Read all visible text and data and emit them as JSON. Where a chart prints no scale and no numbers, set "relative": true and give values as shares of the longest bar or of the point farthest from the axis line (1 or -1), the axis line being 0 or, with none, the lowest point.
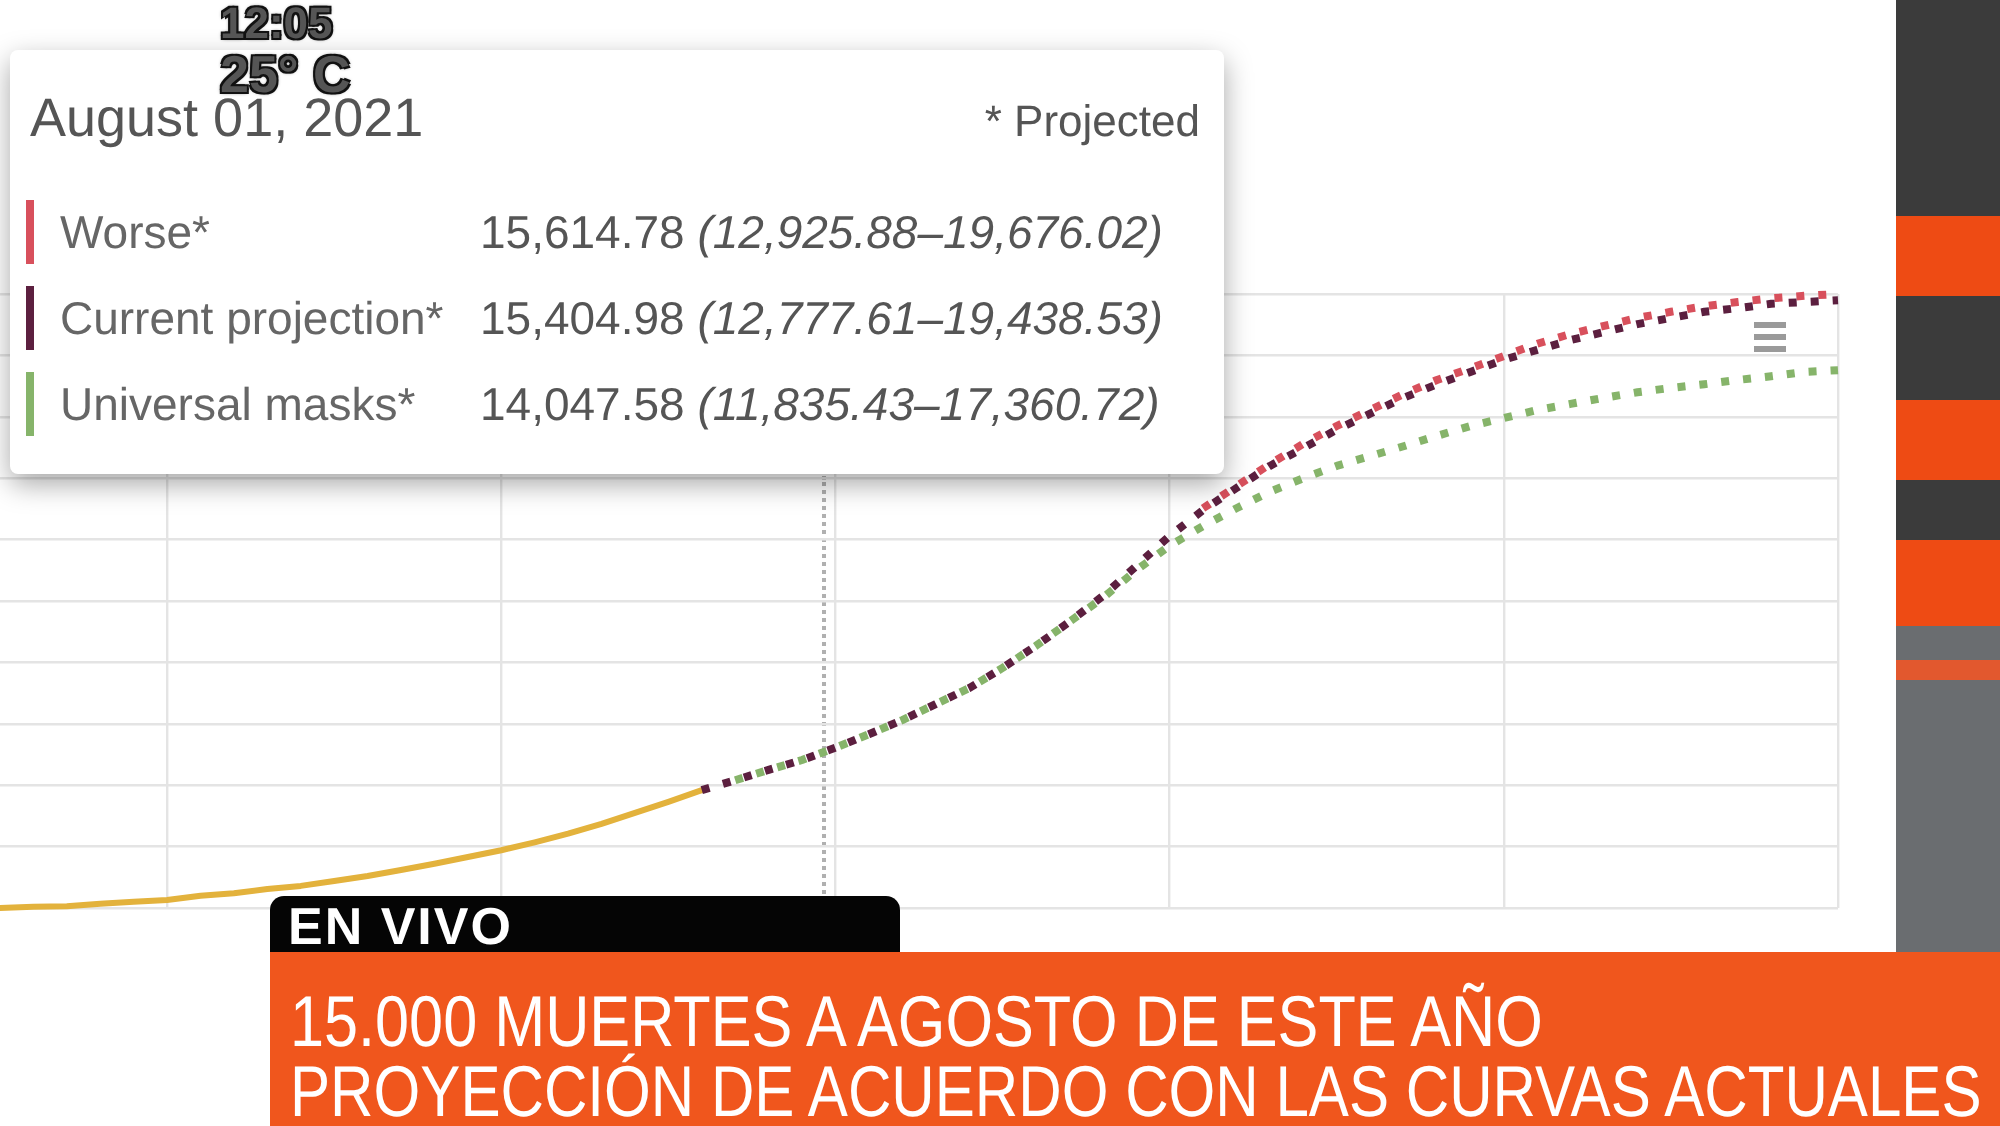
{
  "chart_data": {
    "type": "line",
    "title": "15.000 MUERTES A AGOSTO DE ESTE AÑO",
    "subtitle": "PROYECCIÓN DE ACUERDO CON LAS CURVAS ACTUALES",
    "legend_title": "August 01, 2021",
    "annotations": [
      "* Projected",
      "15,614.78 (12,925.88–19,676.02)",
      "15,404.98 (12,777.61–19,438.53)",
      "14,047.58 (11,835.43–17,360.72)",
      "EN VIVO",
      "12:05",
      "25° C"
    ],
    "categories": [
      null,
      null,
      null,
      null,
      null,
      null,
      null,
      null,
      null,
      null,
      null,
      null,
      null,
      null,
      null,
      null,
      null,
      null,
      null,
      null,
      null,
      null,
      null,
      null,
      null,
      null,
      null,
      null,
      null,
      null,
      null,
      null,
      null,
      null,
      null,
      null,
      null,
      null,
      null,
      null,
      null,
      null,
      null,
      null,
      null,
      null,
      null,
      null,
      null,
      null,
      null,
      null,
      null,
      null,
      null,
      null
    ],
    "relative": true,
    "series": [
      {
        "color": "#e3b23c",
        "line_style": "solid",
        "values": [
          0,
          0.002,
          0.003,
          0.007,
          0.01,
          0.013,
          0.02,
          0.024,
          0.031,
          0.036,
          0.044,
          0.052,
          0.062,
          0.072,
          0.083,
          0.094,
          0.107,
          0.121,
          0.137,
          0.155,
          0.173,
          0.192,
          null,
          null,
          null,
          null,
          null,
          null,
          null,
          null,
          null,
          null,
          null,
          null,
          null,
          null,
          null,
          null,
          null,
          null,
          null,
          null,
          null,
          null,
          null,
          null,
          null,
          null,
          null,
          null,
          null,
          null,
          null,
          null,
          null,
          null
        ]
      },
      {
        "name": "Worse*",
        "color": "#d8505c",
        "line_style": "dotted",
        "values": [
          null,
          null,
          null,
          null,
          null,
          null,
          null,
          null,
          null,
          null,
          null,
          null,
          null,
          null,
          null,
          null,
          null,
          null,
          null,
          null,
          null,
          null,
          null,
          null,
          null,
          null,
          null,
          null,
          null,
          null,
          null,
          null,
          null,
          null,
          null,
          null,
          0.651,
          0.687,
          0.723,
          0.756,
          0.785,
          0.811,
          0.837,
          0.86,
          0.879,
          0.899,
          0.919,
          0.935,
          0.948,
          0.961,
          0.971,
          0.98,
          0.987,
          0.993,
          0.997,
          1
        ]
      },
      {
        "name": "Current projection*",
        "color": "#5c1f3f",
        "line_style": "dotted",
        "values": [
          null,
          null,
          null,
          null,
          null,
          null,
          null,
          null,
          null,
          null,
          null,
          null,
          null,
          null,
          null,
          null,
          null,
          null,
          null,
          null,
          null,
          0.192,
          0.208,
          0.225,
          0.241,
          0.261,
          0.283,
          0.306,
          0.332,
          0.358,
          0.391,
          0.427,
          0.466,
          0.508,
          0.557,
          0.606,
          0.648,
          0.684,
          0.72,
          0.749,
          0.779,
          0.805,
          0.831,
          0.853,
          0.873,
          0.893,
          0.909,
          0.925,
          0.938,
          0.951,
          0.961,
          0.971,
          0.977,
          0.984,
          0.987,
          0.99
        ]
      },
      {
        "name": "Universal masks*",
        "color": "#86b46a",
        "line_style": "dotted",
        "values": [
          null,
          null,
          null,
          null,
          null,
          null,
          null,
          null,
          null,
          null,
          null,
          null,
          null,
          null,
          null,
          null,
          null,
          null,
          null,
          null,
          null,
          null,
          0.208,
          0.225,
          0.241,
          0.261,
          0.283,
          0.306,
          0.332,
          0.358,
          0.391,
          0.427,
          0.466,
          0.505,
          0.55,
          0.59,
          0.622,
          0.651,
          0.678,
          0.7,
          0.72,
          0.736,
          0.752,
          0.769,
          0.785,
          0.798,
          0.811,
          0.821,
          0.831,
          0.84,
          0.847,
          0.853,
          0.86,
          0.866,
          0.873,
          0.876
        ]
      }
    ],
    "grid": true,
    "legend": "top left",
    "marker": "none"
  }
}
